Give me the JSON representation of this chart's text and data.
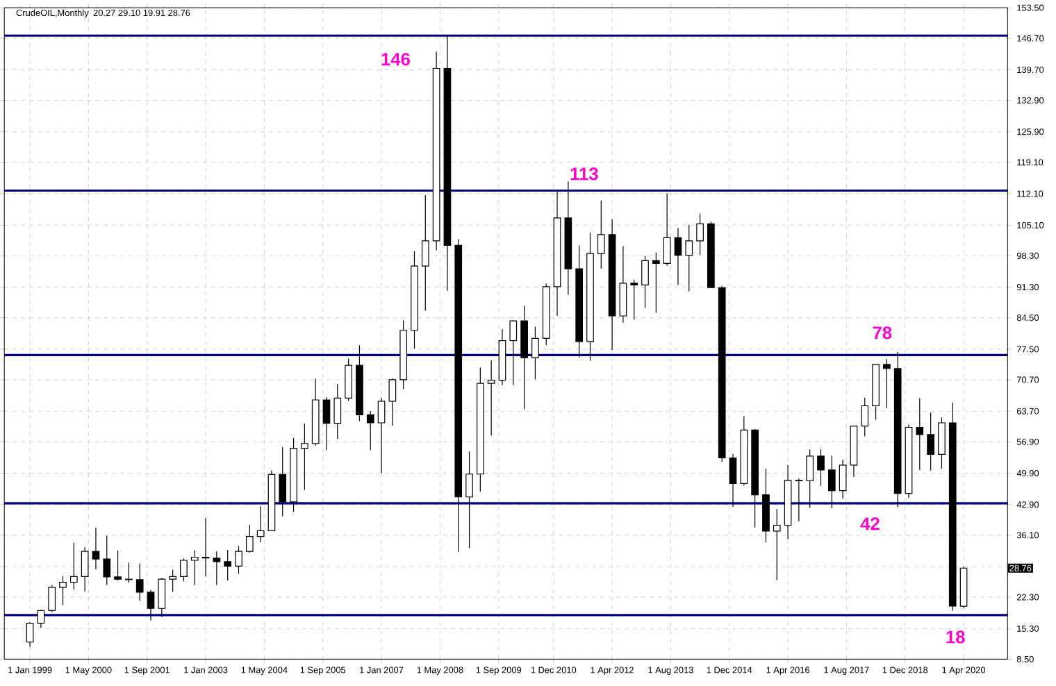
{
  "chart_data": {
    "type": "candlestick",
    "title": "CrudeOIL,Monthly",
    "subtitle": "20.27 29.10 19.91 28.76",
    "color": "#000000",
    "x": [
      "1999-01",
      "1999-04",
      "1999-07",
      "1999-10",
      "2000-01",
      "2000-04",
      "2000-07",
      "2000-10",
      "2001-01",
      "2001-04",
      "2001-07",
      "2001-10",
      "2002-01",
      "2002-04",
      "2002-07",
      "2002-10",
      "2003-01",
      "2003-04",
      "2003-07",
      "2003-10",
      "2004-01",
      "2004-04",
      "2004-07",
      "2004-10",
      "2005-01",
      "2005-04",
      "2005-07",
      "2005-10",
      "2006-01",
      "2006-04",
      "2006-07",
      "2006-10",
      "2007-01",
      "2007-04",
      "2007-07",
      "2007-10",
      "2008-01",
      "2008-04",
      "2008-07",
      "2008-10",
      "2009-01",
      "2009-04",
      "2009-07",
      "2009-10",
      "2010-01",
      "2010-04",
      "2010-07",
      "2010-10",
      "2011-01",
      "2011-04",
      "2011-07",
      "2011-10",
      "2012-01",
      "2012-04",
      "2012-07",
      "2012-10",
      "2013-01",
      "2013-04",
      "2013-07",
      "2013-10",
      "2014-01",
      "2014-04",
      "2014-07",
      "2014-10",
      "2015-01",
      "2015-04",
      "2015-07",
      "2015-10",
      "2016-01",
      "2016-04",
      "2016-07",
      "2016-10",
      "2017-01",
      "2017-04",
      "2017-07",
      "2017-10",
      "2018-01",
      "2018-04",
      "2018-07",
      "2018-10",
      "2019-01",
      "2019-04",
      "2019-07",
      "2019-10",
      "2020-01",
      "2020-04"
    ],
    "ohlc": [
      [
        12.3,
        16.8,
        11.3,
        16.5
      ],
      [
        16.5,
        19.5,
        15.5,
        19.3
      ],
      [
        19.3,
        25.0,
        19.0,
        24.5
      ],
      [
        24.5,
        27.0,
        20.5,
        25.6
      ],
      [
        25.6,
        34.4,
        24.0,
        26.9
      ],
      [
        26.9,
        33.4,
        23.6,
        32.5
      ],
      [
        32.5,
        37.8,
        28.5,
        30.8
      ],
      [
        30.8,
        36.0,
        25.0,
        26.8
      ],
      [
        26.8,
        32.7,
        26.0,
        26.3
      ],
      [
        26.3,
        30.0,
        25.5,
        26.2
      ],
      [
        26.2,
        29.8,
        21.5,
        23.4
      ],
      [
        23.4,
        23.9,
        17.1,
        19.8
      ],
      [
        19.8,
        26.6,
        17.9,
        26.3
      ],
      [
        26.3,
        28.4,
        23.5,
        26.9
      ],
      [
        26.9,
        30.9,
        25.8,
        30.5
      ],
      [
        30.5,
        32.7,
        25.0,
        31.2
      ],
      [
        31.2,
        39.9,
        26.9,
        31.0
      ],
      [
        31.0,
        32.5,
        25.0,
        30.2
      ],
      [
        30.2,
        32.8,
        26.0,
        29.2
      ],
      [
        29.2,
        33.7,
        27.5,
        32.5
      ],
      [
        32.5,
        38.4,
        32.2,
        35.8
      ],
      [
        35.8,
        42.5,
        34.5,
        37.1
      ],
      [
        37.1,
        50.5,
        37.0,
        49.6
      ],
      [
        49.6,
        55.7,
        40.3,
        43.5
      ],
      [
        43.5,
        57.7,
        41.3,
        55.4
      ],
      [
        55.4,
        60.9,
        46.2,
        56.5
      ],
      [
        56.5,
        70.9,
        56.0,
        66.2
      ],
      [
        66.2,
        66.8,
        55.0,
        61.0
      ],
      [
        61.0,
        69.7,
        57.5,
        66.6
      ],
      [
        66.6,
        75.4,
        66.0,
        73.9
      ],
      [
        73.9,
        78.4,
        61.5,
        62.9
      ],
      [
        62.9,
        63.7,
        55.0,
        61.1
      ],
      [
        61.1,
        66.7,
        49.9,
        65.9
      ],
      [
        65.9,
        71.0,
        60.5,
        70.7
      ],
      [
        70.7,
        83.9,
        68.6,
        81.7
      ],
      [
        81.7,
        99.3,
        77.6,
        96.0
      ],
      [
        96.0,
        111.8,
        86.1,
        101.6
      ],
      [
        101.6,
        143.7,
        99.5,
        140.0
      ],
      [
        140.0,
        147.3,
        90.5,
        100.6
      ],
      [
        100.6,
        102.0,
        32.4,
        44.6
      ],
      [
        44.6,
        54.7,
        33.2,
        49.7
      ],
      [
        49.7,
        73.4,
        45.8,
        69.9
      ],
      [
        69.9,
        75.0,
        58.3,
        70.6
      ],
      [
        70.6,
        82.0,
        69.5,
        79.4
      ],
      [
        79.4,
        83.9,
        69.5,
        83.8
      ],
      [
        83.8,
        87.2,
        64.2,
        75.6
      ],
      [
        75.6,
        82.5,
        70.8,
        79.9
      ],
      [
        79.9,
        92.1,
        78.4,
        91.4
      ],
      [
        91.4,
        112.9,
        84.9,
        106.7
      ],
      [
        106.7,
        114.8,
        89.6,
        95.4
      ],
      [
        95.4,
        100.6,
        75.7,
        79.2
      ],
      [
        79.2,
        103.4,
        74.9,
        98.8
      ],
      [
        98.8,
        110.6,
        95.4,
        103.0
      ],
      [
        103.0,
        106.4,
        77.3,
        84.9
      ],
      [
        84.9,
        100.4,
        83.4,
        92.2
      ],
      [
        92.2,
        93.0,
        84.1,
        91.8
      ],
      [
        91.8,
        98.2,
        86.7,
        97.2
      ],
      [
        97.2,
        99.0,
        85.6,
        96.6
      ],
      [
        96.6,
        112.2,
        96.1,
        102.3
      ],
      [
        102.3,
        104.5,
        91.8,
        98.4
      ],
      [
        98.4,
        105.2,
        90.4,
        101.6
      ],
      [
        101.6,
        107.7,
        98.5,
        105.4
      ],
      [
        105.4,
        105.9,
        91.2,
        91.2
      ],
      [
        91.2,
        91.6,
        52.4,
        53.3
      ],
      [
        53.3,
        54.2,
        42.4,
        47.6
      ],
      [
        47.6,
        62.6,
        47.1,
        59.5
      ],
      [
        59.5,
        59.7,
        37.8,
        45.1
      ],
      [
        45.1,
        50.9,
        34.5,
        37.0
      ],
      [
        37.0,
        41.9,
        26.1,
        38.3
      ],
      [
        38.3,
        51.7,
        35.2,
        48.3
      ],
      [
        48.3,
        48.7,
        39.2,
        48.2
      ],
      [
        48.2,
        55.2,
        42.2,
        53.7
      ],
      [
        53.7,
        55.2,
        47.1,
        50.6
      ],
      [
        50.6,
        53.8,
        42.1,
        46.0
      ],
      [
        46.0,
        52.9,
        44.2,
        51.7
      ],
      [
        51.7,
        60.5,
        49.1,
        60.4
      ],
      [
        60.4,
        66.7,
        58.1,
        64.9
      ],
      [
        64.9,
        74.2,
        61.8,
        74.1
      ],
      [
        74.1,
        75.3,
        64.4,
        73.2
      ],
      [
        73.2,
        76.9,
        42.4,
        45.4
      ],
      [
        45.4,
        60.7,
        44.4,
        60.1
      ],
      [
        60.1,
        66.6,
        50.6,
        58.5
      ],
      [
        58.5,
        63.4,
        50.5,
        54.1
      ],
      [
        54.1,
        62.3,
        50.9,
        61.1
      ],
      [
        61.1,
        65.6,
        19.3,
        20.3
      ],
      [
        20.27,
        29.1,
        19.91,
        28.76
      ]
    ],
    "xlim": [
      "1998-06",
      "2021-04"
    ],
    "ylim": [
      8.5,
      153.5
    ],
    "xticks": [
      {
        "value": "1999-01",
        "label": "1 Jan 1999"
      },
      {
        "value": "2000-05",
        "label": "1 May 2000"
      },
      {
        "value": "2001-09",
        "label": "1 Sep 2001"
      },
      {
        "value": "2003-01",
        "label": "1 Jan 2003"
      },
      {
        "value": "2004-05",
        "label": "1 May 2004"
      },
      {
        "value": "2005-09",
        "label": "1 Sep 2005"
      },
      {
        "value": "2007-01",
        "label": "1 Jan 2007"
      },
      {
        "value": "2008-05",
        "label": "1 May 2008"
      },
      {
        "value": "2009-09",
        "label": "1 Sep 2009"
      },
      {
        "value": "2010-12",
        "label": "1 Dec 2010"
      },
      {
        "value": "2012-04",
        "label": "1 Apr 2012"
      },
      {
        "value": "2013-08",
        "label": "1 Aug 2013"
      },
      {
        "value": "2014-12",
        "label": "1 Dec 2014"
      },
      {
        "value": "2016-04",
        "label": "1 Apr 2016"
      },
      {
        "value": "2017-08",
        "label": "1 Aug 2017"
      },
      {
        "value": "2018-12",
        "label": "1 Dec 2018"
      },
      {
        "value": "2020-04",
        "label": "1 Apr 2020"
      }
    ],
    "yticks": [
      {
        "value": 8.5,
        "label": "8.50"
      },
      {
        "value": 15.3,
        "label": "15.30"
      },
      {
        "value": 22.3,
        "label": "22.30"
      },
      {
        "value": 29.1,
        "label": null
      },
      {
        "value": 36.1,
        "label": "36.10"
      },
      {
        "value": 42.9,
        "label": "42.90"
      },
      {
        "value": 49.9,
        "label": "49.90"
      },
      {
        "value": 56.9,
        "label": "56.90"
      },
      {
        "value": 63.7,
        "label": "63.70"
      },
      {
        "value": 70.7,
        "label": "70.70"
      },
      {
        "value": 77.5,
        "label": "77.50"
      },
      {
        "value": 84.5,
        "label": "84.50"
      },
      {
        "value": 91.3,
        "label": "91.30"
      },
      {
        "value": 98.3,
        "label": "98.30"
      },
      {
        "value": 105.1,
        "label": "105.10"
      },
      {
        "value": 112.1,
        "label": "112.10"
      },
      {
        "value": 119.1,
        "label": "119.10"
      },
      {
        "value": 125.9,
        "label": "125.90"
      },
      {
        "value": 132.9,
        "label": "132.90"
      },
      {
        "value": 139.7,
        "label": "139.70"
      },
      {
        "value": 146.7,
        "label": "146.70"
      },
      {
        "value": 153.5,
        "label": "153.50"
      }
    ],
    "grid": true,
    "ref_lines": [
      {
        "axis": "y",
        "value": 147.3,
        "color": "#000080"
      },
      {
        "axis": "y",
        "value": 112.8,
        "color": "#000080"
      },
      {
        "axis": "y",
        "value": 76.2,
        "color": "#000080"
      },
      {
        "axis": "y",
        "value": 43.2,
        "color": "#000080"
      },
      {
        "axis": "y",
        "value": 18.3,
        "color": "#000080"
      }
    ],
    "annotations": [
      "146",
      "113",
      "78",
      "42",
      "18",
      "28.76"
    ]
  }
}
